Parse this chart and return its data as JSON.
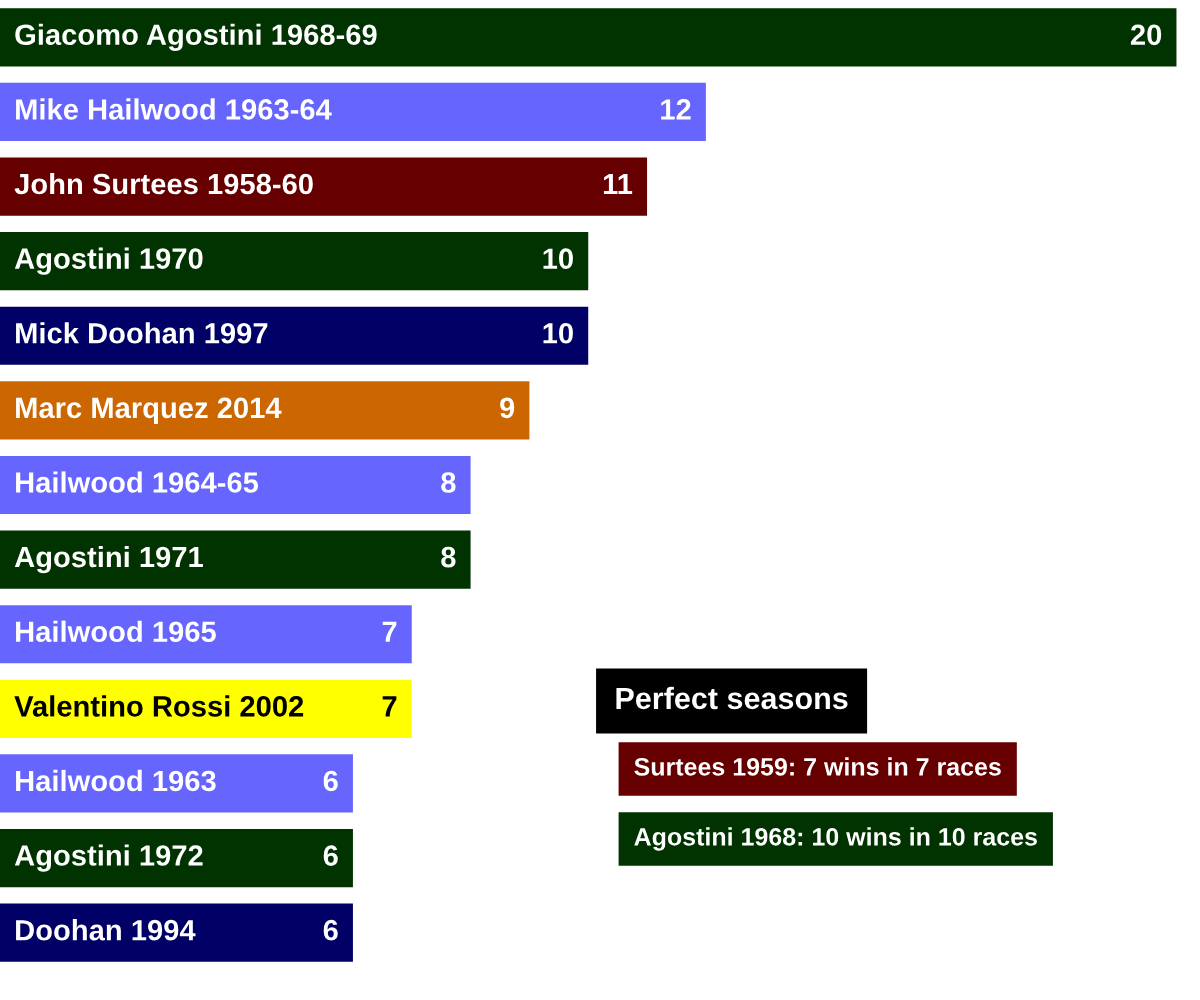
{
  "chart_data": {
    "type": "bar",
    "orientation": "horizontal",
    "data_labels": true,
    "categories": [
      "Giacomo Agostini 1968-69",
      "Mike Hailwood 1963-64",
      "John Surtees 1958-60",
      "Agostini 1970",
      "Mick Doohan 1997",
      "Marc Marquez 2014",
      "Hailwood 1964-65",
      "Agostini 1971",
      "Hailwood 1965",
      "Valentino Rossi 2002",
      "Hailwood 1963",
      "Agostini 1972",
      "Doohan 1994"
    ],
    "values": [
      20,
      12,
      11,
      10,
      10,
      9,
      8,
      8,
      7,
      7,
      6,
      6,
      6
    ],
    "colors": [
      "#003300",
      "#6666ff",
      "#660000",
      "#003300",
      "#000066",
      "#cc6600",
      "#6666ff",
      "#003300",
      "#6666ff",
      "#ffff00",
      "#6666ff",
      "#003300",
      "#000066"
    ],
    "annotations": [
      "Perfect seasons",
      "Surtees 1959: 7 wins in 7 races",
      "Agostini 1968: 10 wins in 10 races"
    ]
  }
}
